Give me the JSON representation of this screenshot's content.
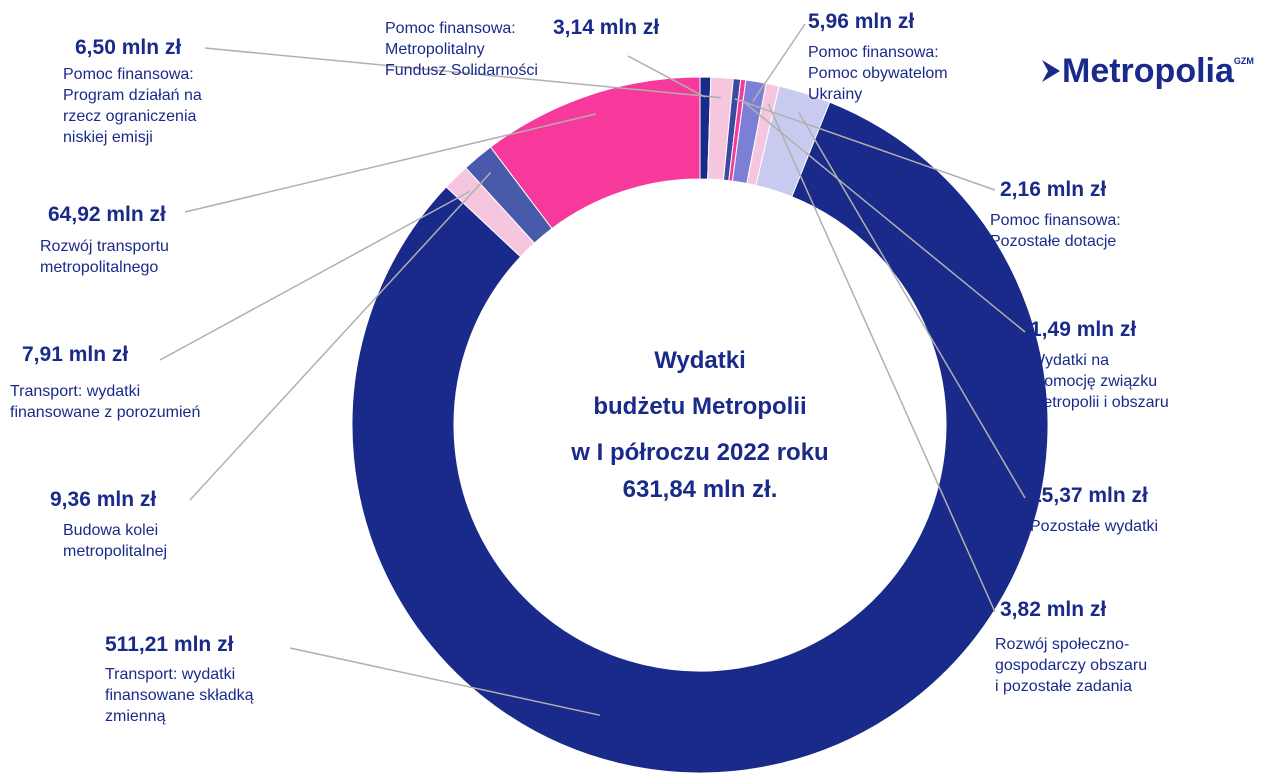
{
  "chart_data": {
    "type": "donut",
    "title": "Wydatki\nbudżetu Metropolii\nw I półroczu 2022 roku",
    "total_label": "631,84 mln zł.",
    "categories": [
      "Pomoc finansowa:\nMetropolitalny\nFundusz Solidarności",
      "Pomoc finansowa:\nProgram działań na\nrzecz ograniczenia\nniskiej emisji",
      "Pomoc finansowa:\nPozostałe dotacje",
      "Wydatki na\npromocję związku\nMetropolii i obszaru",
      "Pomoc finansowa:\nPomoc obywatelom\nUkrainy",
      "Rozwój społeczno-\ngospodarczy obszaru\ni pozostałe zadania",
      "Pozostałe wydatki",
      "Transport: wydatki\nfinansowane składką\nzmienną",
      "Transport: wydatki\nfinansowane z porozumień",
      "Budowa kolei\nmetropolitalnej",
      "Rozwój transportu\nmetropolitalnego"
    ],
    "values": [
      3.14,
      6.5,
      2.16,
      1.49,
      5.96,
      3.82,
      15.37,
      511.21,
      7.91,
      9.36,
      64.92
    ],
    "value_labels": [
      "3,14 mln zł",
      "6,50 mln zł",
      "2,16 mln zł",
      "1,49 mln zł",
      "5,96 mln zł",
      "3,82 mln zł",
      "15,37 mln zł",
      "511,21 mln zł",
      "7,91 mln zł",
      "9,36 mln zł",
      "64,92 mln zł"
    ],
    "colors": [
      "#1a2a8a",
      "#f5c6de",
      "#3a4aa0",
      "#f7399b",
      "#7b7fd6",
      "#f5c6de",
      "#c8caef",
      "#1a2a8a",
      "#f5c6de",
      "#4a5aaa",
      "#f7399b"
    ]
  },
  "logo": {
    "text": "Metropolia",
    "sup": "GZM"
  }
}
